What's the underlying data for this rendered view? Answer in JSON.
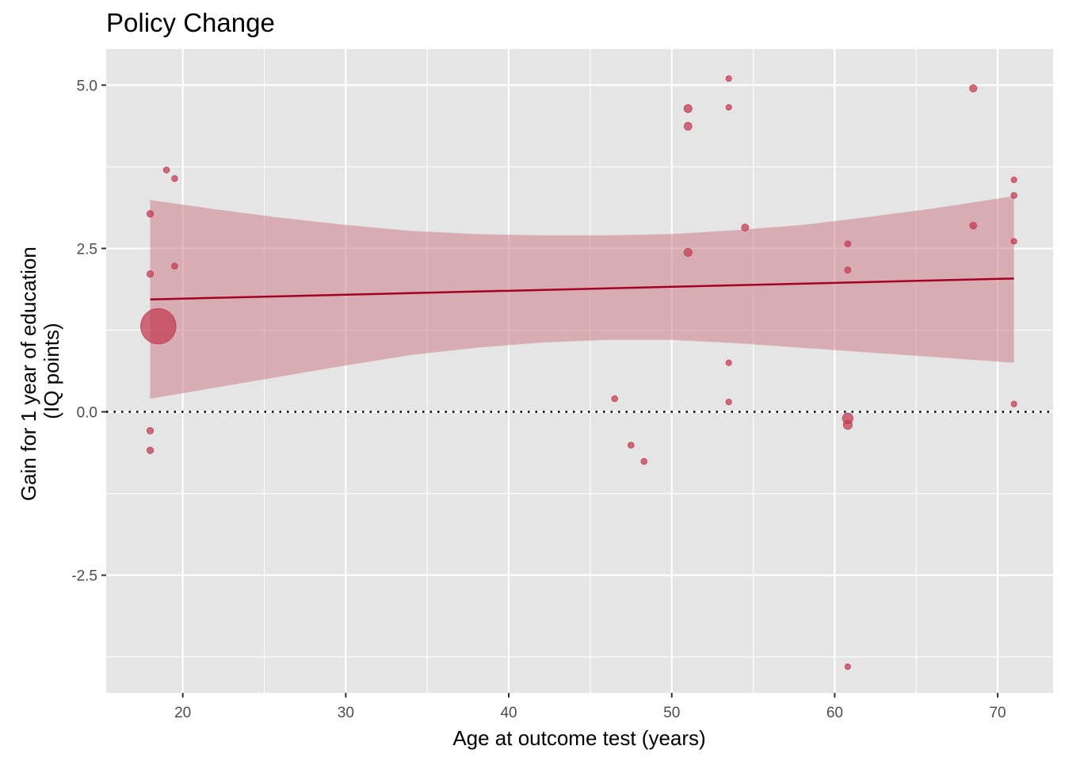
{
  "chart_data": {
    "type": "scatter",
    "title": "Policy Change",
    "xlabel": "Age at outcome test (years)",
    "ylabel_lines": [
      "Gain for 1 year of education",
      "(IQ points)"
    ],
    "xlim": [
      15.3,
      73.4
    ],
    "ylim": [
      -4.3,
      5.55
    ],
    "x_ticks": [
      20,
      30,
      40,
      50,
      60,
      70
    ],
    "x_tick_labels": [
      "20",
      "30",
      "40",
      "50",
      "60",
      "70"
    ],
    "y_ticks": [
      -2.5,
      0,
      2.5,
      5
    ],
    "y_tick_labels": [
      "-2.5",
      "0.0",
      "2.5",
      "5.0"
    ],
    "reference_line": {
      "y": 0,
      "style": "dotted"
    },
    "colors": {
      "panel": "#e5e5e5",
      "grid": "#ffffff",
      "point": "#c0394f",
      "line": "#a50021",
      "ribbon": "#cc7f8b"
    },
    "points": [
      {
        "x": 18.0,
        "y": 3.03,
        "w": 1
      },
      {
        "x": 18.0,
        "y": 2.11,
        "w": 1
      },
      {
        "x": 18.0,
        "y": -0.29,
        "w": 1
      },
      {
        "x": 18.0,
        "y": -0.59,
        "w": 1
      },
      {
        "x": 18.5,
        "y": 1.31,
        "w": 40
      },
      {
        "x": 19.0,
        "y": 3.7,
        "w": 0.8
      },
      {
        "x": 19.5,
        "y": 3.57,
        "w": 0.8
      },
      {
        "x": 19.5,
        "y": 2.23,
        "w": 0.8
      },
      {
        "x": 46.5,
        "y": 0.2,
        "w": 0.8
      },
      {
        "x": 47.5,
        "y": -0.51,
        "w": 0.8
      },
      {
        "x": 48.3,
        "y": -0.76,
        "w": 0.8
      },
      {
        "x": 51.0,
        "y": 4.64,
        "w": 1.6
      },
      {
        "x": 51.0,
        "y": 4.37,
        "w": 1.5
      },
      {
        "x": 51.0,
        "y": 2.44,
        "w": 1.6
      },
      {
        "x": 53.5,
        "y": 5.1,
        "w": 0.7
      },
      {
        "x": 53.5,
        "y": 4.66,
        "w": 0.7
      },
      {
        "x": 53.5,
        "y": 0.75,
        "w": 0.7
      },
      {
        "x": 53.5,
        "y": 0.15,
        "w": 0.7
      },
      {
        "x": 54.5,
        "y": 2.82,
        "w": 1.2
      },
      {
        "x": 60.8,
        "y": 2.57,
        "w": 0.8
      },
      {
        "x": 60.8,
        "y": 2.17,
        "w": 0.9
      },
      {
        "x": 60.8,
        "y": -0.1,
        "w": 3
      },
      {
        "x": 60.8,
        "y": -0.2,
        "w": 2
      },
      {
        "x": 60.8,
        "y": -3.9,
        "w": 0.7
      },
      {
        "x": 68.5,
        "y": 4.95,
        "w": 1.3
      },
      {
        "x": 68.5,
        "y": 2.85,
        "w": 1.1
      },
      {
        "x": 71.0,
        "y": 3.55,
        "w": 0.7
      },
      {
        "x": 71.0,
        "y": 3.31,
        "w": 0.8
      },
      {
        "x": 71.0,
        "y": 2.61,
        "w": 0.7
      },
      {
        "x": 71.0,
        "y": 0.12,
        "w": 0.7
      }
    ],
    "fit_line": {
      "x": [
        18.0,
        71.0
      ],
      "y": [
        1.72,
        2.04
      ]
    },
    "ribbon": {
      "x": [
        18,
        22,
        26,
        30,
        34,
        38,
        42,
        46,
        50,
        54,
        58,
        62,
        66,
        71
      ],
      "upper": [
        3.24,
        3.1,
        2.97,
        2.86,
        2.77,
        2.72,
        2.7,
        2.7,
        2.72,
        2.78,
        2.86,
        2.98,
        3.11,
        3.3
      ],
      "lower": [
        0.2,
        0.37,
        0.54,
        0.71,
        0.87,
        0.98,
        1.06,
        1.1,
        1.1,
        1.05,
        0.98,
        0.91,
        0.84,
        0.75
      ]
    }
  }
}
